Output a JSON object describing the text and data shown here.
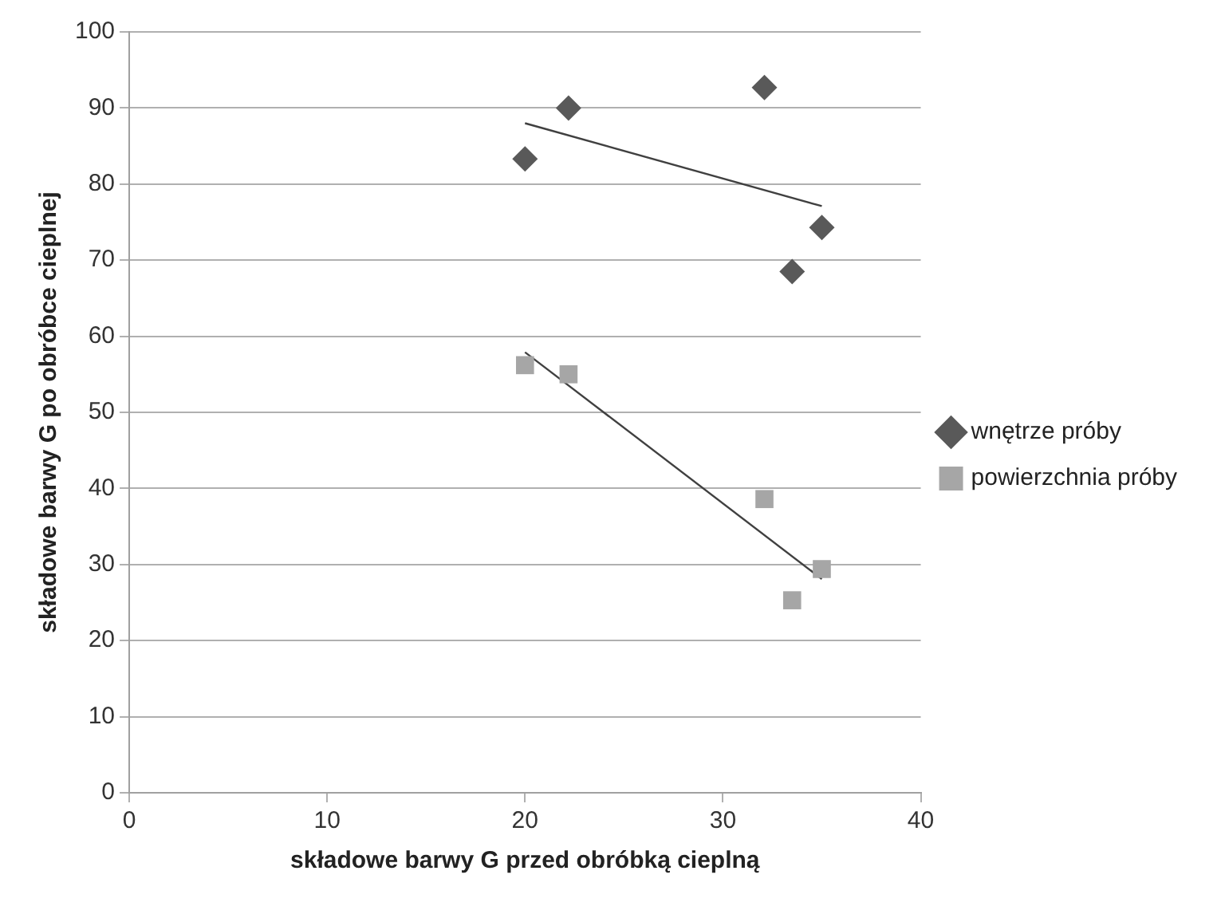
{
  "chart_data": {
    "type": "scatter",
    "xlabel": "składowe barwy G przed obróbką cieplną",
    "ylabel": "składowe barwy G po obróbce cieplnej",
    "xlim": [
      0,
      40
    ],
    "xticks": [
      0,
      10,
      20,
      30,
      40
    ],
    "ylim": [
      0,
      100
    ],
    "yticks": [
      0,
      10,
      20,
      30,
      40,
      50,
      60,
      70,
      80,
      90,
      100
    ],
    "grid": "y",
    "legend": "right",
    "series": [
      {
        "name": "wnętrze próby",
        "color": "#595959",
        "marker": "diamond",
        "x": [
          20.0,
          22.2,
          32.1,
          35.0,
          33.5
        ],
        "values": [
          83.3,
          90.0,
          92.7,
          74.3,
          68.5
        ]
      },
      {
        "name": "powierzchnia próby",
        "color": "#a6a6a6",
        "marker": "square",
        "x": [
          20.0,
          22.2,
          32.1,
          35.0,
          33.5
        ],
        "values": [
          56.2,
          55.0,
          38.6,
          29.4,
          25.3
        ]
      },
      {
        "type": "line",
        "color": "#404040",
        "marker": "none",
        "x": [
          20.0,
          35.0
        ],
        "values": [
          88.0,
          77.1
        ]
      },
      {
        "type": "line",
        "color": "#404040",
        "marker": "none",
        "x": [
          20.0,
          35.0
        ],
        "values": [
          57.9,
          28.1
        ]
      }
    ]
  }
}
